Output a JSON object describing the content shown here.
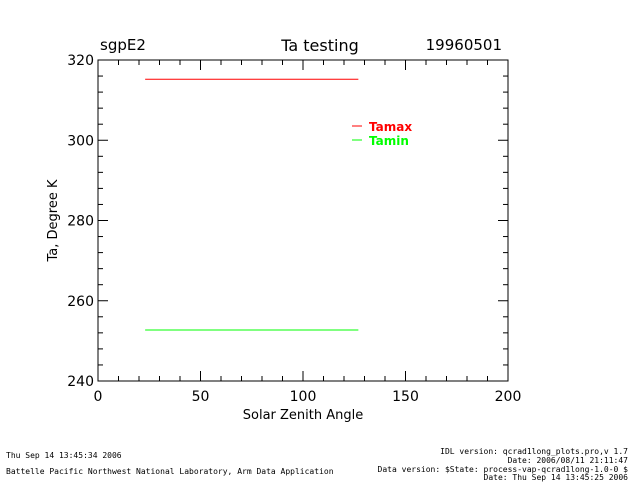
{
  "header": {
    "left": "sgpE2",
    "title": "Ta testing",
    "right": "19960501"
  },
  "footer": {
    "left_top": "Thu Sep 14 13:45:34 2006",
    "left_bottom": "Battelle Pacific Northwest National Laboratory, Arm Data Application",
    "right_lines": [
      "IDL version: qcrad1long_plots.pro,v 1.7",
      "Date: 2006/08/11 21:11:47",
      "Data version: $State: process-vap-qcrad1long-1.0-0 $",
      "Date: Thu Sep 14 13:45:25 2006"
    ]
  },
  "chart_data": {
    "type": "line",
    "xlabel": "Solar Zenith Angle",
    "ylabel": "Ta, Degree K",
    "xlim": [
      0,
      200
    ],
    "ylim": [
      240,
      320
    ],
    "xticks": [
      0,
      50,
      100,
      150,
      200
    ],
    "yticks": [
      240,
      260,
      280,
      300,
      320
    ],
    "grid": false,
    "legend_position": "top-right",
    "series": [
      {
        "name": "Tamax",
        "color": "#ff0000",
        "x": [
          23,
          127
        ],
        "y": [
          315.2,
          315.2
        ]
      },
      {
        "name": "Tamin",
        "color": "#00ff00",
        "x": [
          23,
          127
        ],
        "y": [
          252.7,
          252.7
        ]
      }
    ]
  }
}
